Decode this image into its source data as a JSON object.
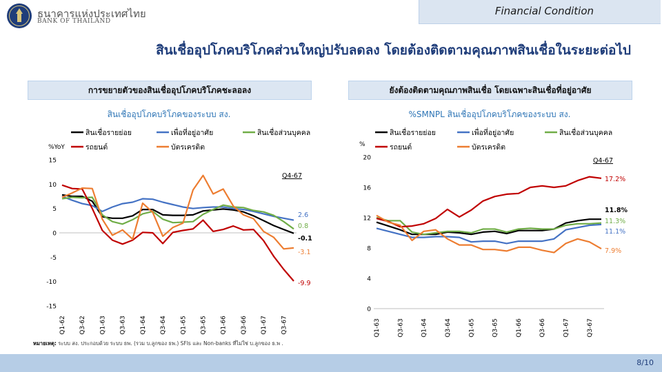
{
  "header": {
    "org_th": "ธนาคารแห่งประเทศไทย",
    "org_en": "BANK OF THAILAND",
    "section": "Financial Condition"
  },
  "title": "สินเชื่ออุปโภคบริโภคส่วนใหญ่ปรับลดลง โดยต้องติดตามคุณภาพสินเชื่อในระยะต่อไป",
  "panels": [
    {
      "header": "การขยายตัวของสินเชื่ออุปโภคบริโภคชะลอลง"
    },
    {
      "header": "ยังต้องติดตามคุณภาพสินเชื่อ โดยเฉพาะสินเชื่อที่อยู่อาศัย"
    }
  ],
  "colors": {
    "retail": "#000000",
    "housing": "#4472c4",
    "personal": "#70ad47",
    "auto": "#c00000",
    "credit": "#ed7d31",
    "title": "#1f3d7a",
    "subtitle": "#2e75b6"
  },
  "chart_data": [
    {
      "type": "line",
      "title": "สินเชื่ออุปโภคบริโภคของระบบ สง.",
      "ylabel": "%YoY",
      "ylim": [
        -15,
        15
      ],
      "yticks": [
        15,
        10,
        5,
        0,
        -5,
        -10,
        -15
      ],
      "tick_labels": [
        "Q1-62",
        "Q3-62",
        "Q1-63",
        "Q3-63",
        "Q1-64",
        "Q3-64",
        "Q1-65",
        "Q3-65",
        "Q1-66",
        "Q3-66",
        "Q1-67",
        "Q3-67"
      ],
      "annotation": "Q4-67",
      "x": [
        "Q1-62",
        "Q2-62",
        "Q3-62",
        "Q4-62",
        "Q1-63",
        "Q2-63",
        "Q3-63",
        "Q4-63",
        "Q1-64",
        "Q2-64",
        "Q3-64",
        "Q4-64",
        "Q1-65",
        "Q2-65",
        "Q3-65",
        "Q4-65",
        "Q1-66",
        "Q2-66",
        "Q3-66",
        "Q4-66",
        "Q1-67",
        "Q2-67",
        "Q3-67",
        "Q4-67"
      ],
      "series": [
        {
          "name": "สินเชื่อรายย่อย",
          "color": "#000000",
          "end_label": "-0.1",
          "values": [
            7.8,
            7.5,
            7.5,
            6.5,
            3.3,
            3.0,
            3.0,
            3.5,
            4.8,
            4.8,
            3.7,
            3.6,
            3.6,
            3.7,
            4.5,
            4.7,
            4.9,
            4.7,
            4.3,
            3.5,
            2.5,
            1.5,
            0.7,
            -0.1
          ]
        },
        {
          "name": "เพื่อที่อยู่อาศัย",
          "color": "#4472c4",
          "end_label": "2.6",
          "values": [
            7.5,
            6.7,
            6.0,
            5.6,
            4.4,
            5.3,
            6.0,
            6.3,
            7.0,
            6.9,
            6.3,
            5.8,
            5.3,
            5.0,
            5.2,
            5.3,
            5.3,
            5.0,
            4.8,
            4.4,
            3.9,
            3.4,
            3.0,
            2.6
          ]
        },
        {
          "name": "สินเชื่อส่วนบุคคล",
          "color": "#70ad47",
          "end_label": "0.8",
          "values": [
            7.0,
            7.3,
            7.2,
            7.3,
            3.7,
            2.3,
            1.8,
            2.7,
            3.9,
            4.4,
            2.8,
            2.1,
            2.2,
            2.3,
            3.8,
            4.8,
            5.7,
            5.3,
            5.2,
            4.6,
            4.3,
            3.6,
            2.3,
            0.8
          ]
        },
        {
          "name": "รถยนต์",
          "color": "#c00000",
          "end_label": "-9.9",
          "values": [
            9.8,
            9.1,
            9.0,
            5.0,
            0.5,
            -1.5,
            -2.3,
            -1.5,
            0.1,
            0.0,
            -2.2,
            0.1,
            0.5,
            0.8,
            2.6,
            0.3,
            0.7,
            1.4,
            0.6,
            0.7,
            -1.6,
            -4.8,
            -7.5,
            -9.9
          ]
        },
        {
          "name": "บัตรเครดิต",
          "color": "#ed7d31",
          "end_label": "-3.1",
          "values": [
            7.3,
            8.2,
            9.2,
            9.1,
            2.8,
            -0.5,
            0.6,
            -1.3,
            6.1,
            4.2,
            -0.7,
            1.1,
            2.0,
            8.8,
            11.8,
            8.0,
            9.0,
            5.5,
            3.7,
            2.9,
            0.3,
            -0.9,
            -3.3,
            -3.1
          ]
        }
      ]
    },
    {
      "type": "line",
      "title": "%SMNPL สินเชื่ออุปโภคบริโภคของระบบ สง.",
      "ylabel": "%",
      "ylim": [
        0,
        20
      ],
      "yticks": [
        20,
        16,
        12,
        8,
        4,
        0
      ],
      "tick_labels": [
        "Q1-63",
        "Q3-63",
        "Q1-64",
        "Q3-64",
        "Q1-65",
        "Q3-65",
        "Q1-66",
        "Q3-66",
        "Q1-67",
        "Q3-67"
      ],
      "annotation": "Q4-67",
      "x": [
        "Q1-63",
        "Q2-63",
        "Q3-63",
        "Q4-63",
        "Q1-64",
        "Q2-64",
        "Q3-64",
        "Q4-64",
        "Q1-65",
        "Q2-65",
        "Q3-65",
        "Q4-65",
        "Q1-66",
        "Q2-66",
        "Q3-66",
        "Q4-66",
        "Q1-67",
        "Q2-67",
        "Q3-67",
        "Q4-67"
      ],
      "series": [
        {
          "name": "สินเชื่อรายย่อย",
          "color": "#000000",
          "end_label": "11.8%",
          "values": [
            11.4,
            10.9,
            10.4,
            9.8,
            9.8,
            9.8,
            10.1,
            10.0,
            9.8,
            10.1,
            10.2,
            9.9,
            10.3,
            10.3,
            10.3,
            10.5,
            11.3,
            11.6,
            11.8,
            11.8
          ]
        },
        {
          "name": "เพื่อที่อยู่อาศัย",
          "color": "#4472c4",
          "end_label": "11.1%",
          "values": [
            10.6,
            10.2,
            9.8,
            9.4,
            9.4,
            9.5,
            9.5,
            9.4,
            8.8,
            8.9,
            8.9,
            8.6,
            8.9,
            8.9,
            8.9,
            9.2,
            10.4,
            10.7,
            11.0,
            11.1
          ]
        },
        {
          "name": "สินเชื่อส่วนบุคคล",
          "color": "#70ad47",
          "end_label": "11.3%",
          "values": [
            12.0,
            11.6,
            11.6,
            10.1,
            9.8,
            10.0,
            10.2,
            10.2,
            10.0,
            10.5,
            10.5,
            10.1,
            10.5,
            10.6,
            10.5,
            10.5,
            11.0,
            11.2,
            11.2,
            11.3
          ]
        },
        {
          "name": "รถยนต์",
          "color": "#c00000",
          "end_label": "17.2%",
          "values": [
            11.9,
            11.5,
            10.8,
            10.9,
            11.2,
            11.9,
            13.1,
            12.1,
            13.0,
            14.2,
            14.8,
            15.1,
            15.2,
            16.0,
            16.2,
            16.0,
            16.2,
            16.9,
            17.4,
            17.2
          ]
        },
        {
          "name": "บัตรเครดิต",
          "color": "#ed7d31",
          "end_label": "7.9%",
          "values": [
            12.3,
            11.4,
            11.0,
            9.0,
            10.2,
            10.4,
            9.2,
            8.4,
            8.4,
            7.8,
            7.8,
            7.6,
            8.1,
            8.1,
            7.7,
            7.4,
            8.6,
            9.2,
            8.8,
            7.9
          ]
        }
      ]
    }
  ],
  "footnote": {
    "label": "หมายเหตุ:",
    "text": " ระบบ สง. ประกอบด้วย ระบบ ธพ. (รวม บ.ลูกของ ธพ.) SFIs และ Non-banks ที่ไม่ใช่ บ.ลูกของ ธ.พ ."
  },
  "page": "8/10"
}
